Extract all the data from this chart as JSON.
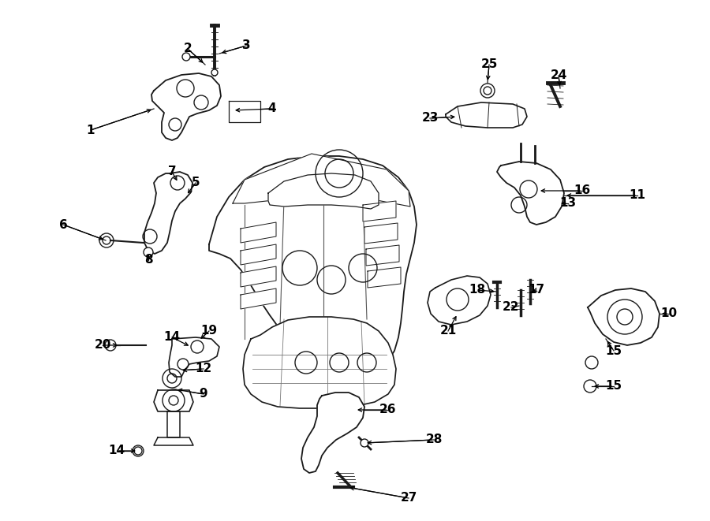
{
  "bg": "#ffffff",
  "lc": "#1a1a1a",
  "fw": 9.0,
  "fh": 6.61,
  "dpi": 100
}
